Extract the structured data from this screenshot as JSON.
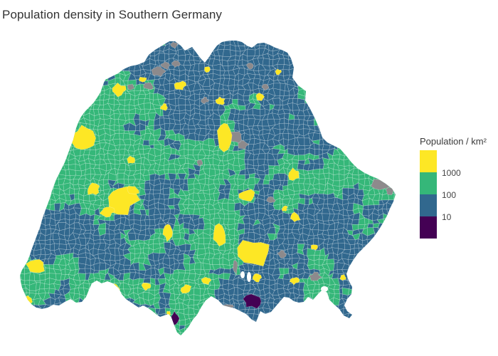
{
  "title": "Population density in Southern Germany",
  "legend": {
    "title": "Population / km²",
    "ticks": [
      "1000",
      "100",
      "10"
    ],
    "colors": [
      "#fde725",
      "#35b779",
      "#31688e",
      "#440154"
    ]
  },
  "chart_data": {
    "type": "choropleth",
    "title": "Population density in Southern Germany",
    "legend_title": "Population / km²",
    "legend_position": "right",
    "background": "#ffffff",
    "border_color": "rgba(255,255,255,0.32)",
    "no_data_color": "#8d8a8c",
    "color_scale": [
      {
        "tick": "1000",
        "color": "#fde725"
      },
      {
        "tick": "100",
        "color": "#35b779"
      },
      {
        "tick": "10",
        "color": "#31688e"
      },
      {
        "tick": "",
        "color": "#440154"
      }
    ],
    "map_geometry": {
      "outline": [
        [
          148,
          112
        ],
        [
          158,
          107
        ],
        [
          166,
          103
        ],
        [
          174,
          97
        ],
        [
          183,
          93
        ],
        [
          193,
          91
        ],
        [
          203,
          87
        ],
        [
          209,
          77
        ],
        [
          218,
          70
        ],
        [
          228,
          64
        ],
        [
          238,
          58
        ],
        [
          246,
          58
        ],
        [
          254,
          64
        ],
        [
          260,
          71
        ],
        [
          270,
          66
        ],
        [
          276,
          74
        ],
        [
          282,
          82
        ],
        [
          288,
          88
        ],
        [
          294,
          80
        ],
        [
          299,
          72
        ],
        [
          305,
          64
        ],
        [
          312,
          59
        ],
        [
          322,
          57
        ],
        [
          332,
          57
        ],
        [
          340,
          59
        ],
        [
          347,
          64
        ],
        [
          354,
          67
        ],
        [
          362,
          61
        ],
        [
          371,
          60
        ],
        [
          379,
          63
        ],
        [
          387,
          67
        ],
        [
          396,
          70
        ],
        [
          404,
          74
        ],
        [
          409,
          82
        ],
        [
          413,
          95
        ],
        [
          411,
          109
        ],
        [
          419,
          120
        ],
        [
          430,
          128
        ],
        [
          429,
          141
        ],
        [
          436,
          153
        ],
        [
          443,
          167
        ],
        [
          449,
          181
        ],
        [
          453,
          193
        ],
        [
          460,
          200
        ],
        [
          470,
          205
        ],
        [
          478,
          209
        ],
        [
          486,
          218
        ],
        [
          494,
          228
        ],
        [
          502,
          236
        ],
        [
          511,
          242
        ],
        [
          521,
          247
        ],
        [
          531,
          251
        ],
        [
          542,
          258
        ],
        [
          551,
          265
        ],
        [
          556,
          273
        ],
        [
          553,
          283
        ],
        [
          548,
          293
        ],
        [
          544,
          303
        ],
        [
          539,
          312
        ],
        [
          533,
          322
        ],
        [
          526,
          332
        ],
        [
          519,
          340
        ],
        [
          511,
          348
        ],
        [
          503,
          356
        ],
        [
          496,
          366
        ],
        [
          490,
          376
        ],
        [
          487,
          385
        ],
        [
          490,
          394
        ],
        [
          495,
          403
        ],
        [
          494,
          413
        ],
        [
          488,
          420
        ],
        [
          484,
          429
        ],
        [
          488,
          437
        ],
        [
          495,
          442
        ],
        [
          491,
          447
        ],
        [
          483,
          443
        ],
        [
          477,
          434
        ],
        [
          470,
          428
        ],
        [
          463,
          421
        ],
        [
          460,
          411
        ],
        [
          453,
          407
        ],
        [
          447,
          413
        ],
        [
          440,
          421
        ],
        [
          433,
          417
        ],
        [
          427,
          424
        ],
        [
          420,
          425
        ],
        [
          413,
          423
        ],
        [
          406,
          418
        ],
        [
          399,
          417
        ],
        [
          393,
          424
        ],
        [
          387,
          431
        ],
        [
          381,
          438
        ],
        [
          373,
          441
        ],
        [
          366,
          437
        ],
        [
          360,
          452
        ],
        [
          354,
          449
        ],
        [
          346,
          441
        ],
        [
          338,
          437
        ],
        [
          330,
          433
        ],
        [
          322,
          431
        ],
        [
          314,
          429
        ],
        [
          306,
          421
        ],
        [
          297,
          416
        ],
        [
          289,
          422
        ],
        [
          283,
          431
        ],
        [
          277,
          442
        ],
        [
          271,
          449
        ],
        [
          265,
          459
        ],
        [
          259,
          466
        ],
        [
          254,
          471
        ],
        [
          249,
          467
        ],
        [
          245,
          457
        ],
        [
          241,
          446
        ],
        [
          237,
          441
        ],
        [
          231,
          443
        ],
        [
          225,
          445
        ],
        [
          219,
          441
        ],
        [
          213,
          436
        ],
        [
          207,
          432
        ],
        [
          201,
          429
        ],
        [
          195,
          432
        ],
        [
          189,
          428
        ],
        [
          183,
          424
        ],
        [
          177,
          420
        ],
        [
          171,
          413
        ],
        [
          167,
          405
        ],
        [
          159,
          398
        ],
        [
          151,
          395
        ],
        [
          143,
          398
        ],
        [
          136,
          394
        ],
        [
          129,
          398
        ],
        [
          125,
          407
        ],
        [
          121,
          417
        ],
        [
          115,
          424
        ],
        [
          107,
          425
        ],
        [
          99,
          420
        ],
        [
          91,
          424
        ],
        [
          83,
          429
        ],
        [
          75,
          428
        ],
        [
          67,
          432
        ],
        [
          59,
          434
        ],
        [
          51,
          432
        ],
        [
          45,
          428
        ],
        [
          39,
          421
        ],
        [
          35,
          413
        ],
        [
          31,
          404
        ],
        [
          29,
          395
        ],
        [
          28,
          387
        ],
        [
          31,
          379
        ],
        [
          35,
          373
        ],
        [
          39,
          366
        ],
        [
          42,
          358
        ],
        [
          45,
          349
        ],
        [
          48,
          341
        ],
        [
          51,
          333
        ],
        [
          54,
          325
        ],
        [
          57,
          317
        ],
        [
          59,
          309
        ],
        [
          62,
          300
        ],
        [
          65,
          292
        ],
        [
          68,
          284
        ],
        [
          71,
          276
        ],
        [
          73,
          268
        ],
        [
          76,
          260
        ],
        [
          79,
          252
        ],
        [
          83,
          244
        ],
        [
          87,
          236
        ],
        [
          91,
          228
        ],
        [
          94,
          220
        ],
        [
          97,
          212
        ],
        [
          100,
          204
        ],
        [
          103,
          196
        ],
        [
          105,
          188
        ],
        [
          107,
          180
        ],
        [
          110,
          172
        ],
        [
          114,
          164
        ],
        [
          119,
          157
        ],
        [
          125,
          151
        ],
        [
          131,
          145
        ],
        [
          136,
          138
        ],
        [
          141,
          130
        ],
        [
          144,
          122
        ],
        [
          146,
          116
        ]
      ],
      "city_patches": [
        [
          167,
          126,
          9,
          8
        ],
        [
          117,
          194,
          14,
          16
        ],
        [
          131,
          266,
          9,
          8
        ],
        [
          169,
          281,
          22,
          19
        ],
        [
          151,
          297,
          9,
          7
        ],
        [
          187,
          267,
          8,
          6
        ],
        [
          184,
          225,
          5,
          5
        ],
        [
          231,
          151,
          5,
          5
        ],
        [
          50,
          374,
          12,
          10
        ],
        [
          40,
          421,
          6,
          5
        ],
        [
          162,
          406,
          6,
          8
        ],
        [
          206,
          402,
          6,
          5
        ],
        [
          253,
          120,
          8,
          6
        ],
        [
          291,
          97,
          5,
          4
        ],
        [
          201,
          112,
          5,
          4
        ],
        [
          316,
          190,
          11,
          22
        ],
        [
          310,
          142,
          6,
          5
        ],
        [
          365,
          136,
          6,
          5
        ],
        [
          391,
          101,
          4,
          4
        ],
        [
          413,
          245,
          8,
          8
        ],
        [
          348,
          275,
          11,
          9
        ],
        [
          309,
          331,
          8,
          15
        ],
        [
          359,
          354,
          22,
          18
        ],
        [
          415,
          305,
          7,
          6
        ],
        [
          236,
          326,
          7,
          11
        ],
        [
          290,
          394,
          6,
          5
        ],
        [
          262,
          406,
          7,
          6
        ],
        [
          414,
          394,
          6,
          5
        ],
        [
          361,
          390,
          6,
          6
        ],
        [
          441,
          347,
          5,
          4
        ],
        [
          482,
          390,
          4,
          4
        ],
        [
          237,
          440,
          3,
          3
        ],
        [
          400,
          293,
          4,
          4
        ]
      ],
      "no_data_patches": [
        [
          222,
          100,
          9,
          7
        ],
        [
          233,
          92,
          6,
          5
        ],
        [
          209,
          121,
          6,
          5
        ],
        [
          184,
          122,
          5,
          4
        ],
        [
          247,
          90,
          5,
          4
        ],
        [
          288,
          141,
          5,
          4
        ],
        [
          332,
          192,
          9,
          8
        ],
        [
          341,
          203,
          7,
          6
        ],
        [
          373,
          122,
          5,
          4
        ],
        [
          281,
          229,
          4,
          4
        ],
        [
          536,
          259,
          12,
          8
        ],
        [
          548,
          268,
          5,
          5
        ],
        [
          381,
          281,
          5,
          4
        ],
        [
          396,
          357,
          6,
          5
        ],
        [
          331,
          375,
          3,
          10
        ],
        [
          443,
          389,
          8,
          6
        ],
        [
          320,
          431,
          7,
          4
        ],
        [
          352,
          93,
          5,
          4
        ],
        [
          244,
          63,
          5,
          4
        ]
      ],
      "sparse_patches": [
        [
          355,
          423,
          11,
          9
        ],
        [
          246,
          447,
          5,
          9
        ]
      ],
      "lakes": [
        [
          350,
          389,
          3,
          7
        ],
        [
          341,
          386,
          3,
          5
        ],
        [
          456,
          406,
          5,
          4
        ]
      ],
      "density_bias": [
        [
          290,
          112,
          80,
          0.32
        ],
        [
          390,
          95,
          55,
          0.22
        ],
        [
          452,
          195,
          55,
          0.18
        ],
        [
          468,
          330,
          85,
          0.26
        ],
        [
          380,
          425,
          85,
          0.32
        ],
        [
          330,
          190,
          55,
          0.15
        ],
        [
          95,
          315,
          50,
          0.24
        ],
        [
          152,
          348,
          55,
          0.18
        ],
        [
          258,
          250,
          40,
          0.1
        ],
        [
          205,
          95,
          45,
          0.15
        ],
        [
          115,
          200,
          65,
          -0.3
        ],
        [
          65,
          255,
          55,
          -0.28
        ],
        [
          205,
          318,
          70,
          -0.24
        ],
        [
          330,
          272,
          65,
          -0.18
        ],
        [
          500,
          262,
          45,
          -0.22
        ],
        [
          268,
          97,
          35,
          -0.12
        ],
        [
          172,
          138,
          40,
          -0.2
        ],
        [
          425,
          370,
          45,
          -0.1
        ],
        [
          300,
          360,
          45,
          -0.12
        ],
        [
          48,
          390,
          40,
          -0.22
        ]
      ]
    }
  }
}
